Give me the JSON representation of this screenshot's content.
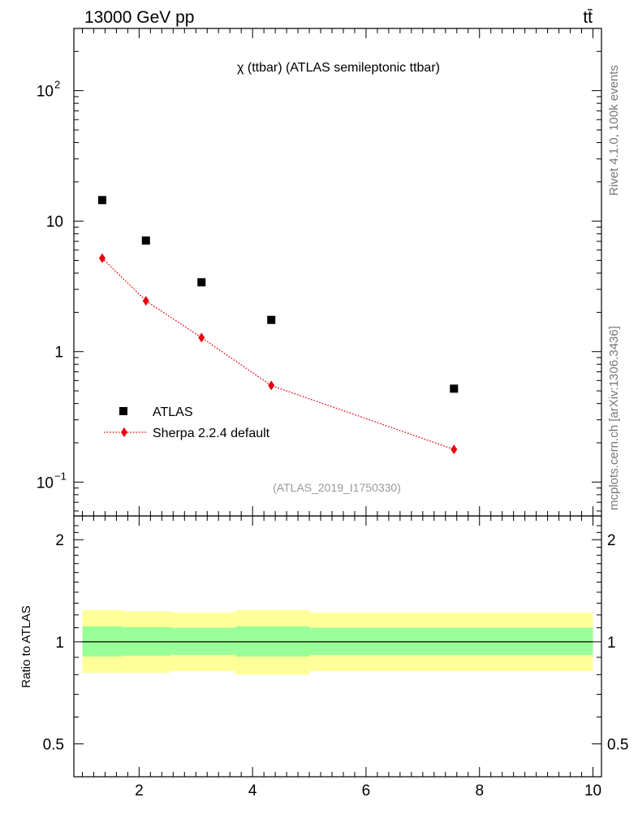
{
  "header": {
    "energy_label": "13000 GeV pp",
    "process_label": "tt̄",
    "side_label_top": "Rivet 4.1.0,  100k events",
    "side_label_bottom": "mcplots.cern.ch [arXiv:1306.3436]"
  },
  "chart_data": [
    {
      "type": "scatter",
      "panel": "main",
      "title": "χ (ttbar) (ATLAS semileptonic ttbar)",
      "analysis_label": "(ATLAS_2019_I1750330)",
      "yscale": "log",
      "xlim": [
        0.85,
        10.15
      ],
      "ylim": [
        0.055,
        300
      ],
      "y_ticks": [
        {
          "value": 0.1,
          "base": "10",
          "exp": "−1"
        },
        {
          "value": 1,
          "base": "1",
          "exp": ""
        },
        {
          "value": 10,
          "base": "10",
          "exp": ""
        },
        {
          "value": 100,
          "base": "10",
          "exp": "2"
        }
      ],
      "series": [
        {
          "name": "ATLAS",
          "marker": "square",
          "color": "#000000",
          "x": [
            1.35,
            2.12,
            3.1,
            4.33,
            7.55
          ],
          "values": [
            14.5,
            7.1,
            3.4,
            1.75,
            0.52
          ]
        },
        {
          "name": "Sherpa 2.2.4 default",
          "marker": "diamond",
          "line": "dotted",
          "color": "#e8000b",
          "x": [
            1.35,
            2.12,
            3.1,
            4.33,
            7.55
          ],
          "values": [
            5.2,
            2.45,
            1.28,
            0.55,
            0.178
          ]
        }
      ],
      "legend": [
        "ATLAS",
        "Sherpa 2.2.4 default"
      ],
      "legend_position": "bottom-left"
    },
    {
      "type": "area",
      "panel": "ratio",
      "ylabel": "Ratio to ATLAS",
      "yscale": "log",
      "xlim": [
        0.85,
        10.15
      ],
      "ylim": [
        0.4,
        2.35
      ],
      "x_ticks": [
        2,
        4,
        6,
        8,
        10
      ],
      "y_ticks": [
        0.5,
        1,
        2
      ],
      "reference_line": 1,
      "bins": [
        1.0,
        1.7,
        2.55,
        3.7,
        5.0,
        10.0
      ],
      "bands": [
        {
          "name": "total uncertainty",
          "color": "#ffff99",
          "low": [
            0.81,
            0.81,
            0.82,
            0.8,
            0.82
          ],
          "high": [
            1.24,
            1.23,
            1.22,
            1.24,
            1.22
          ]
        },
        {
          "name": "stat uncertainty",
          "color": "#99ff99",
          "low": [
            0.905,
            0.91,
            0.915,
            0.905,
            0.915
          ],
          "high": [
            1.11,
            1.105,
            1.1,
            1.11,
            1.1
          ]
        }
      ]
    }
  ]
}
